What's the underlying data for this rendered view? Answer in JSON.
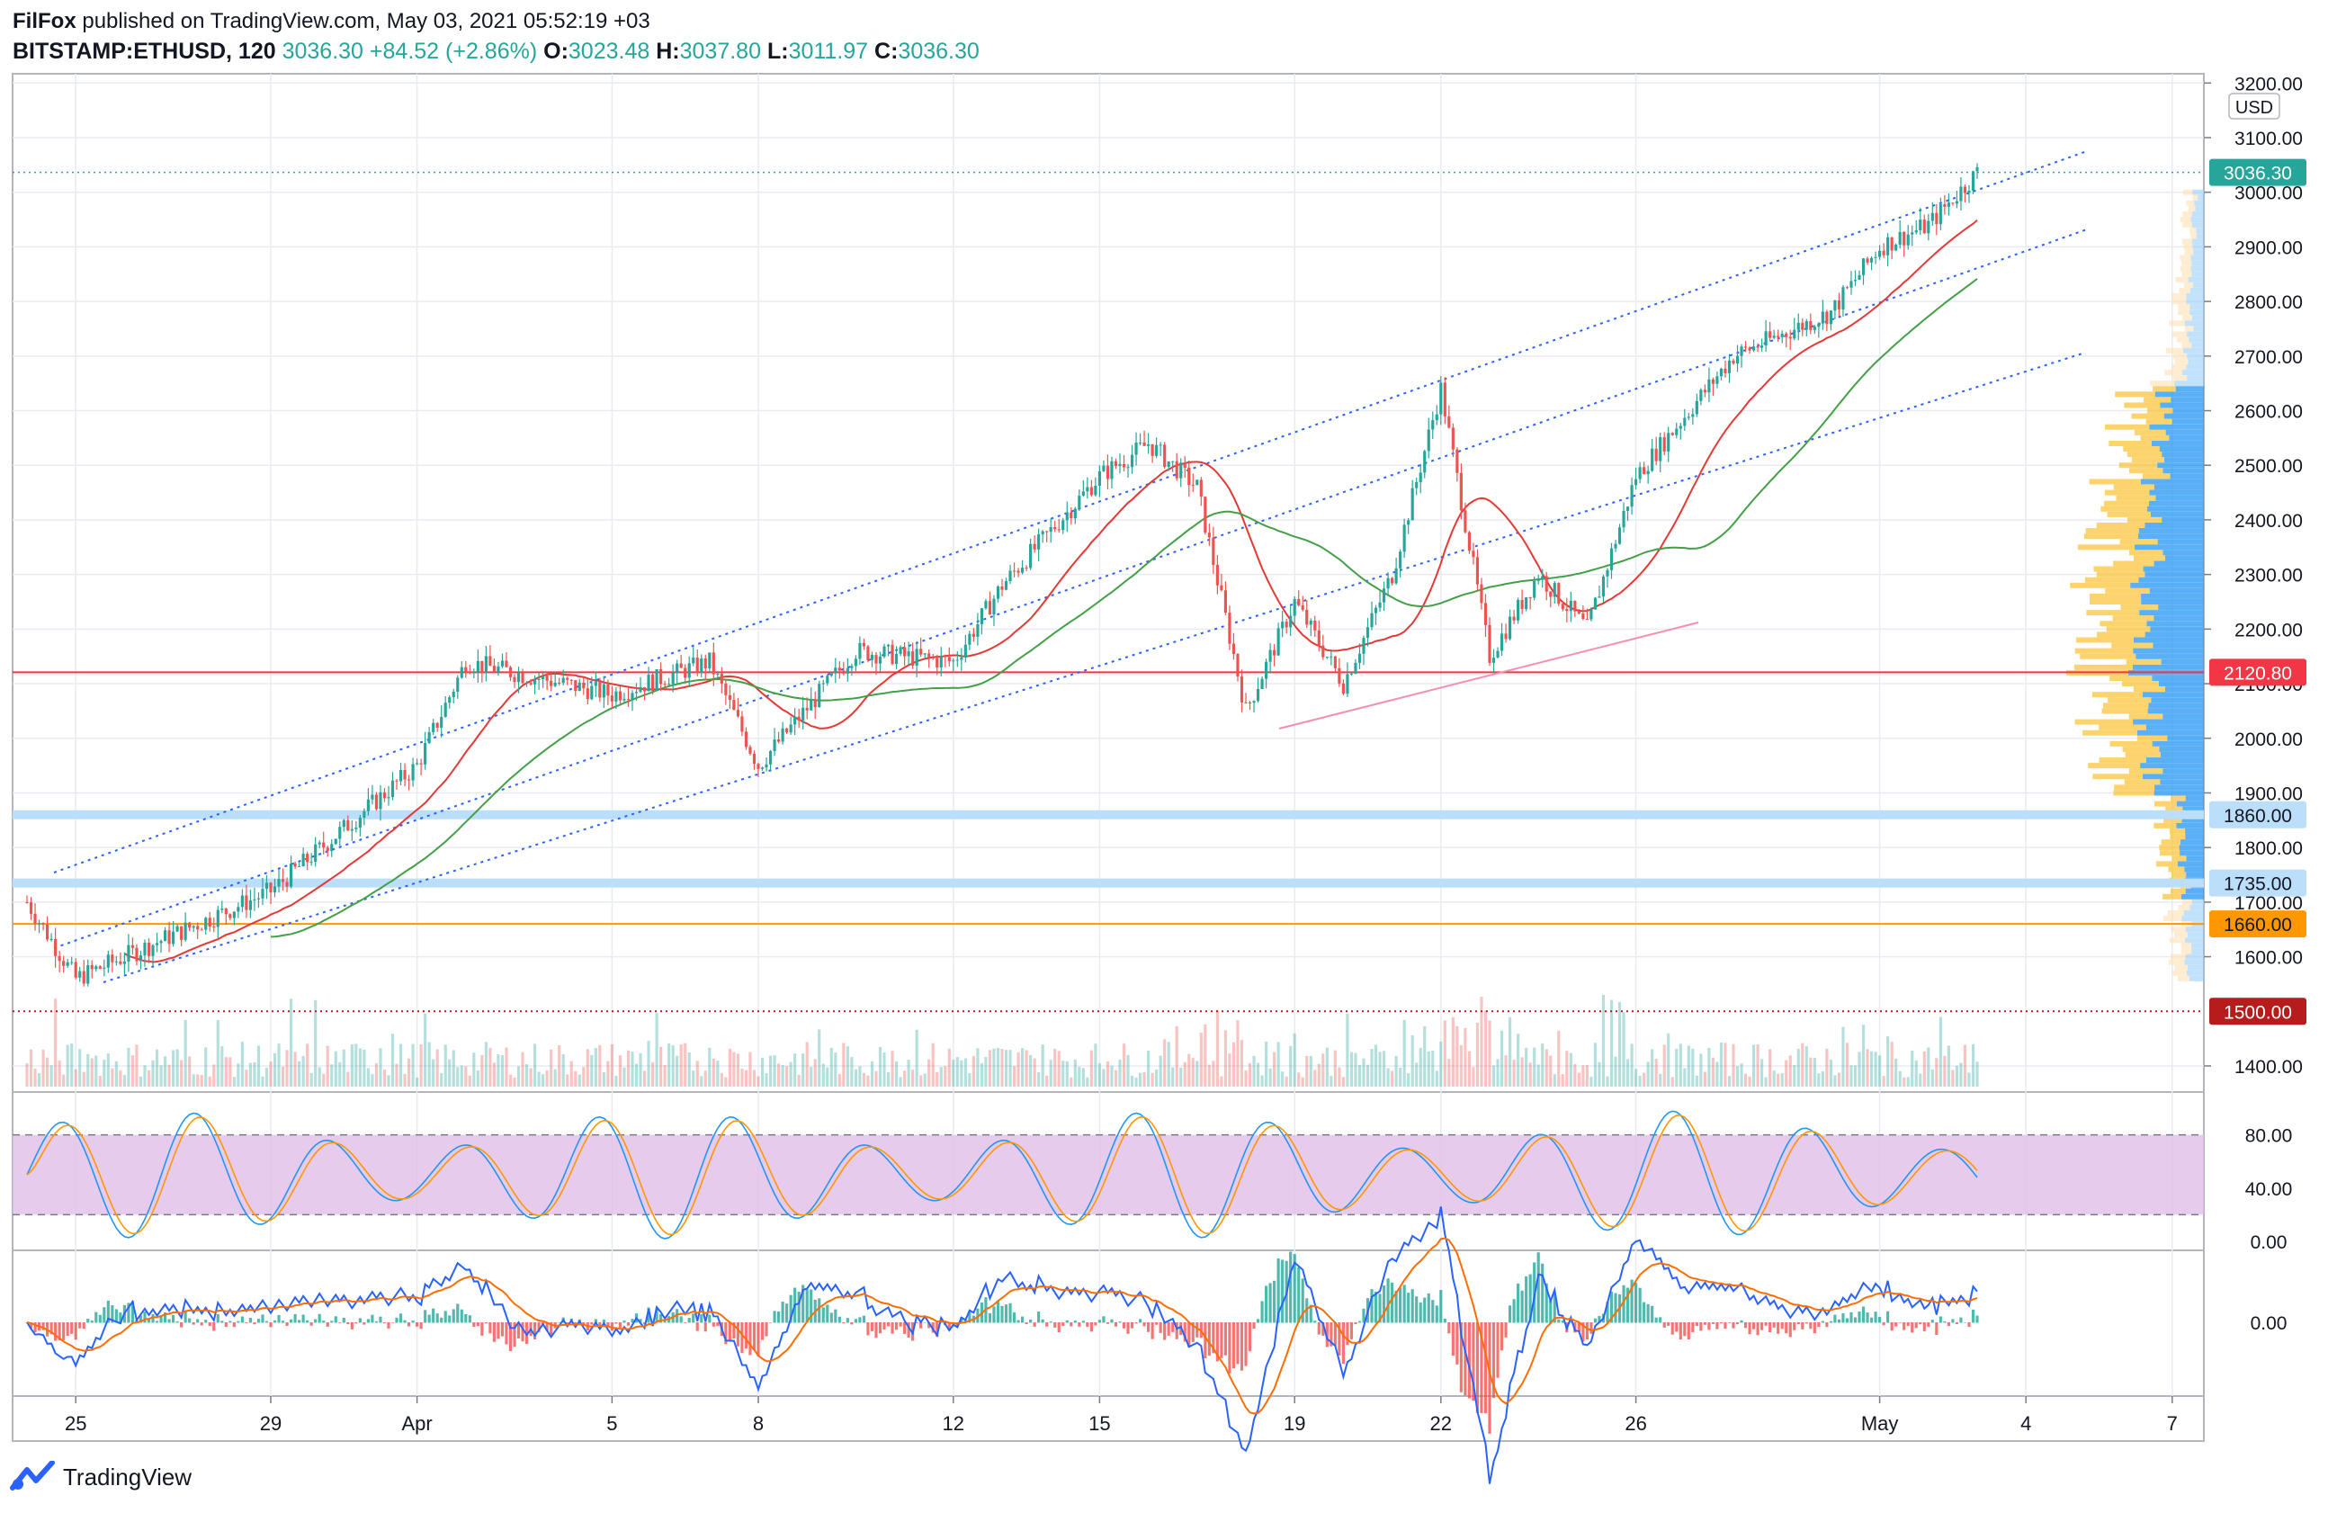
{
  "header": {
    "author": "FilFox",
    "published_text": "published on TradingView.com, May 03, 2021 05:52:19 +03",
    "symbol": "BITSTAMP:ETHUSD, 120",
    "last": "3036.30",
    "change": "+84.52 (+2.86%)",
    "open_label": "O:",
    "open": "3023.48",
    "high_label": "H:",
    "high": "3037.80",
    "low_label": "L:",
    "low": "3011.97",
    "close_label": "C:",
    "close": "3036.30"
  },
  "footer": {
    "brand": "TradingView"
  },
  "colors": {
    "up": "#26a69a",
    "down": "#ef5350",
    "channel": "#2962ff",
    "ma_fast": "#e53935",
    "ma_slow": "#43a047",
    "support_red": "#f23645",
    "orange": "#ff9800",
    "light_blue": "#bbdefb",
    "dark_red": "#b71c1c",
    "rsi_band": "#e1bee7",
    "stoch_k": "#2196f3",
    "stoch_d": "#ff9800",
    "macd": "#2962ff",
    "signal": "#ff6d00"
  },
  "chart_data": {
    "type": "candlestick",
    "currency": "USD",
    "price_axis": {
      "min": 1350,
      "max": 3200,
      "ticks": [
        "3200.00",
        "3100.00",
        "3000.00",
        "2900.00",
        "2800.00",
        "2700.00",
        "2600.00",
        "2500.00",
        "2400.00",
        "2300.00",
        "2200.00",
        "2100.00",
        "2000.00",
        "1900.00",
        "1800.00",
        "1700.00",
        "1600.00",
        "1400.00"
      ]
    },
    "x_ticks": [
      "25",
      "29",
      "Apr",
      "5",
      "8",
      "12",
      "15",
      "19",
      "22",
      "26",
      "May",
      "4",
      "7"
    ],
    "price_labels": [
      {
        "label": "3036.30",
        "value": 3036.3,
        "role": "last"
      },
      {
        "label": "2120.80",
        "value": 2120.8,
        "role": "support_red"
      },
      {
        "label": "1860.00",
        "value": 1860,
        "role": "light_blue"
      },
      {
        "label": "1735.00",
        "value": 1735,
        "role": "light_blue"
      },
      {
        "label": "1660.00",
        "value": 1660,
        "role": "orange"
      },
      {
        "label": "1500.00",
        "value": 1500,
        "role": "dark_red"
      }
    ],
    "key_points": [
      {
        "x": "Mar 24",
        "price": 1700
      },
      {
        "x": "Mar 25",
        "price": 1560
      },
      {
        "x": "Mar 29",
        "price": 1720
      },
      {
        "x": "Apr 1",
        "price": 1950
      },
      {
        "x": "Apr 2",
        "price": 2140
      },
      {
        "x": "Apr 5",
        "price": 2080
      },
      {
        "x": "Apr 7",
        "price": 2140
      },
      {
        "x": "Apr 8",
        "price": 1950
      },
      {
        "x": "Apr 10",
        "price": 2160
      },
      {
        "x": "Apr 12",
        "price": 2140
      },
      {
        "x": "Apr 13",
        "price": 2280
      },
      {
        "x": "Apr 15",
        "price": 2480
      },
      {
        "x": "Apr 16",
        "price": 2540
      },
      {
        "x": "Apr 17",
        "price": 2460
      },
      {
        "x": "Apr 18",
        "price": 2050
      },
      {
        "x": "Apr 19",
        "price": 2250
      },
      {
        "x": "Apr 20",
        "price": 2100
      },
      {
        "x": "Apr 21",
        "price": 2300
      },
      {
        "x": "Apr 22",
        "price": 2640
      },
      {
        "x": "Apr 23",
        "price": 2150
      },
      {
        "x": "Apr 24",
        "price": 2300
      },
      {
        "x": "Apr 25",
        "price": 2200
      },
      {
        "x": "Apr 26",
        "price": 2480
      },
      {
        "x": "Apr 28",
        "price": 2700
      },
      {
        "x": "Apr 30",
        "price": 2780
      },
      {
        "x": "May 1",
        "price": 2900
      },
      {
        "x": "May 2",
        "price": 2940
      },
      {
        "x": "May 3",
        "price": 3036
      }
    ],
    "stoch_rsi": {
      "ticks": [
        "80.00",
        "40.00",
        "0.00"
      ],
      "upper": 80,
      "lower": 20
    },
    "macd": {
      "ticks": [
        "0.00"
      ]
    }
  }
}
